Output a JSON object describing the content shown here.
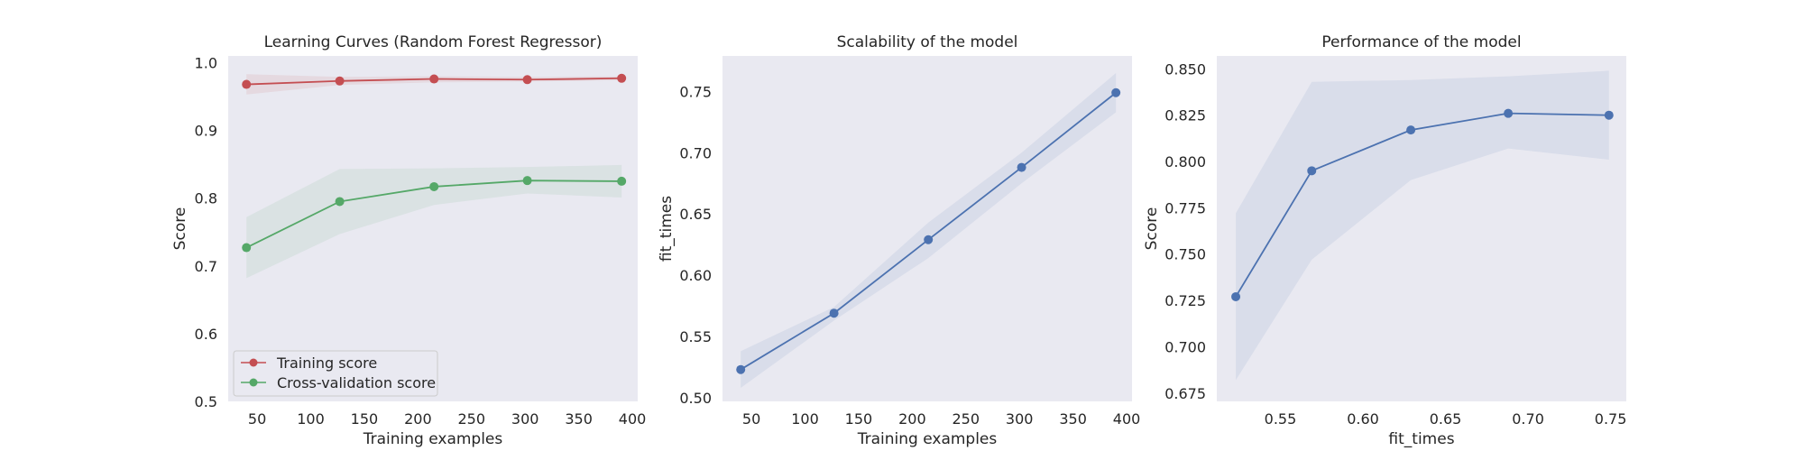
{
  "chart_data": [
    {
      "type": "line",
      "title": "Learning Curves (Random Forest Regressor)",
      "xlabel": "Training examples",
      "ylabel": "Score",
      "xlim": [
        23,
        405
      ],
      "ylim": [
        0.5,
        1.01
      ],
      "xticks": [
        50,
        100,
        150,
        200,
        250,
        300,
        350,
        400
      ],
      "yticks": [
        0.5,
        0.6,
        0.7,
        0.8,
        0.9,
        1.0
      ],
      "ytick_labels": [
        "0.5",
        "0.6",
        "0.7",
        "0.8",
        "0.9",
        "1.0"
      ],
      "grid": false,
      "legend": "lower-left",
      "series": [
        {
          "name": "Training score",
          "color": "#c44e52",
          "x": [
            40,
            127,
            215,
            302,
            390
          ],
          "y": [
            0.968,
            0.973,
            0.976,
            0.975,
            0.977
          ],
          "band_lower": [
            0.953,
            0.967,
            0.971,
            0.972,
            0.974
          ],
          "band_upper": [
            0.983,
            0.979,
            0.98,
            0.979,
            0.98
          ]
        },
        {
          "name": "Cross-validation score",
          "color": "#55a868",
          "x": [
            40,
            127,
            215,
            302,
            390
          ],
          "y": [
            0.727,
            0.795,
            0.817,
            0.826,
            0.825
          ],
          "band_lower": [
            0.682,
            0.747,
            0.79,
            0.807,
            0.801
          ],
          "band_upper": [
            0.772,
            0.843,
            0.844,
            0.846,
            0.849
          ]
        }
      ]
    },
    {
      "type": "line",
      "title": "Scalability of the model",
      "xlabel": "Training examples",
      "ylabel": "fit_times",
      "xlim": [
        23,
        405
      ],
      "ylim": [
        0.497,
        0.779
      ],
      "xticks": [
        50,
        100,
        150,
        200,
        250,
        300,
        350,
        400
      ],
      "yticks": [
        0.5,
        0.55,
        0.6,
        0.65,
        0.7,
        0.75
      ],
      "ytick_labels": [
        "0.50",
        "0.55",
        "0.60",
        "0.65",
        "0.70",
        "0.75"
      ],
      "grid": false,
      "series": [
        {
          "color": "#4c72b0",
          "x": [
            40,
            127,
            215,
            302,
            390
          ],
          "y": [
            0.523,
            0.569,
            0.629,
            0.688,
            0.749
          ],
          "band_lower": [
            0.508,
            0.563,
            0.614,
            0.675,
            0.733
          ],
          "band_upper": [
            0.538,
            0.574,
            0.643,
            0.7,
            0.765
          ]
        }
      ]
    },
    {
      "type": "line",
      "title": "Performance of the model",
      "xlabel": "fit_times",
      "ylabel": "Score",
      "xlim": [
        0.5115,
        0.7595
      ],
      "ylim": [
        0.6705,
        0.857
      ],
      "xticks": [
        0.55,
        0.6,
        0.65,
        0.7,
        0.75
      ],
      "xtick_labels": [
        "0.55",
        "0.60",
        "0.65",
        "0.70",
        "0.75"
      ],
      "yticks": [
        0.675,
        0.7,
        0.725,
        0.75,
        0.775,
        0.8,
        0.825,
        0.85
      ],
      "ytick_labels": [
        "0.675",
        "0.700",
        "0.725",
        "0.750",
        "0.775",
        "0.800",
        "0.825",
        "0.850"
      ],
      "grid": false,
      "series": [
        {
          "color": "#4c72b0",
          "x": [
            0.523,
            0.569,
            0.629,
            0.688,
            0.749
          ],
          "y": [
            0.727,
            0.795,
            0.817,
            0.826,
            0.825
          ],
          "band_lower": [
            0.682,
            0.747,
            0.79,
            0.807,
            0.801
          ],
          "band_upper": [
            0.772,
            0.843,
            0.844,
            0.846,
            0.849
          ]
        }
      ]
    }
  ]
}
